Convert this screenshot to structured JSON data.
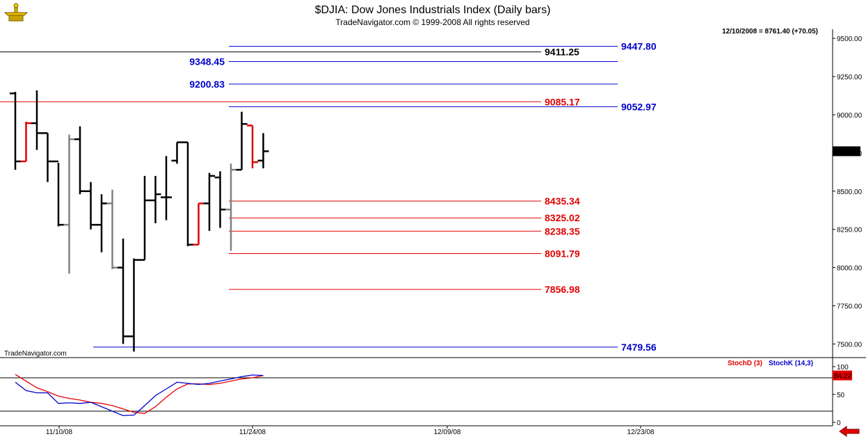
{
  "header": {
    "title": "$DJIA:  Dow Jones Industrials Index  (Daily bars)",
    "subtitle": "TradeNavigator.com © 1999-2008 All rights reserved",
    "last_info": "12/10/2008 = 8761.40 (+70.05)",
    "watermark": "TradeNavigator.com",
    "logo_icon": "gold-scale-icon",
    "nav_icon": "red-left-arrow-icon"
  },
  "chart_data": [
    {
      "type": "ohlc",
      "title": "$DJIA:  Dow Jones Industrials Index  (Daily bars)",
      "ylim": [
        7420,
        9560
      ],
      "yticks": [
        9500,
        9250,
        9000,
        8750,
        8500,
        8250,
        8000,
        7750,
        7500
      ],
      "ytick_labels": [
        "9500.00",
        "9250.00",
        "9000.00",
        "8750.00",
        "8500.00",
        "8250.00",
        "8000.00",
        "7750.00",
        "7500.00"
      ],
      "xtick_labels": [
        "11/10/08",
        "11/24/08",
        "12/09/08",
        "12/23/08"
      ],
      "last_price_label": "8761.40",
      "last_price": 8761.4,
      "colors": {
        "up": "#000000",
        "down": "#e00000",
        "neutral": "#808080"
      },
      "bars": [
        {
          "o": 9140,
          "h": 9150,
          "l": 8640,
          "c": 8695,
          "color": "up"
        },
        {
          "o": 8695,
          "h": 8955,
          "l": 8695,
          "c": 8945,
          "color": "down"
        },
        {
          "o": 8945,
          "h": 9160,
          "l": 8770,
          "c": 8880,
          "color": "up"
        },
        {
          "o": 8880,
          "h": 8880,
          "l": 8560,
          "c": 8695,
          "color": "up"
        },
        {
          "o": 8695,
          "h": 8685,
          "l": 8270,
          "c": 8280,
          "color": "up"
        },
        {
          "o": 8280,
          "h": 8870,
          "l": 7960,
          "c": 8840,
          "color": "neutral"
        },
        {
          "o": 8840,
          "h": 8925,
          "l": 8480,
          "c": 8500,
          "color": "up"
        },
        {
          "o": 8500,
          "h": 8560,
          "l": 8250,
          "c": 8280,
          "color": "up"
        },
        {
          "o": 8280,
          "h": 8480,
          "l": 8100,
          "c": 8420,
          "color": "up"
        },
        {
          "o": 8420,
          "h": 8510,
          "l": 7990,
          "c": 8000,
          "color": "neutral"
        },
        {
          "o": 8000,
          "h": 8190,
          "l": 7500,
          "c": 7550,
          "color": "up"
        },
        {
          "o": 7550,
          "h": 8060,
          "l": 7450,
          "c": 8050,
          "color": "up"
        },
        {
          "o": 8050,
          "h": 8600,
          "l": 8050,
          "c": 8440,
          "color": "up"
        },
        {
          "o": 8440,
          "h": 8600,
          "l": 8290,
          "c": 8480,
          "color": "up"
        },
        {
          "o": 8460,
          "h": 8730,
          "l": 8310,
          "c": 8460,
          "color": "up"
        },
        {
          "o": 8700,
          "h": 8820,
          "l": 8680,
          "c": 8820,
          "color": "up"
        },
        {
          "o": 8820,
          "h": 8820,
          "l": 8140,
          "c": 8150,
          "color": "up"
        },
        {
          "o": 8150,
          "h": 8420,
          "l": 8150,
          "c": 8420,
          "color": "down"
        },
        {
          "o": 8420,
          "h": 8620,
          "l": 8240,
          "c": 8600,
          "color": "up"
        },
        {
          "o": 8590,
          "h": 8630,
          "l": 8260,
          "c": 8380,
          "color": "up"
        },
        {
          "o": 8380,
          "h": 8680,
          "l": 8110,
          "c": 8640,
          "color": "neutral"
        },
        {
          "o": 8640,
          "h": 9020,
          "l": 8640,
          "c": 8940,
          "color": "up"
        },
        {
          "o": 8930,
          "h": 8930,
          "l": 8650,
          "c": 8690,
          "color": "down"
        },
        {
          "o": 8700,
          "h": 8880,
          "l": 8650,
          "c": 8761.4,
          "color": "up"
        }
      ],
      "levels": [
        {
          "value": 9447.8,
          "label": "9447.80",
          "color": "#0000cc",
          "side": "right"
        },
        {
          "value": 9411.25,
          "label": "9411.25",
          "color": "#000000",
          "side": "mid"
        },
        {
          "value": 9348.45,
          "label": "9348.45",
          "color": "#0000cc",
          "side": "left"
        },
        {
          "value": 9200.83,
          "label": "9200.83",
          "color": "#0000cc",
          "side": "left"
        },
        {
          "value": 9085.17,
          "label": "9085.17",
          "color": "#e00000",
          "side": "mid"
        },
        {
          "value": 9052.97,
          "label": "9052.97",
          "color": "#0000cc",
          "side": "right"
        },
        {
          "value": 8435.34,
          "label": "8435.34",
          "color": "#e00000",
          "side": "mid"
        },
        {
          "value": 8325.02,
          "label": "8325.02",
          "color": "#e00000",
          "side": "mid"
        },
        {
          "value": 8238.35,
          "label": "8238.35",
          "color": "#e00000",
          "side": "mid"
        },
        {
          "value": 8091.79,
          "label": "8091.79",
          "color": "#e00000",
          "side": "mid"
        },
        {
          "value": 7856.98,
          "label": "7856.98",
          "color": "#e00000",
          "side": "mid"
        },
        {
          "value": 7479.56,
          "label": "7479.56",
          "color": "#0000cc",
          "side": "right"
        }
      ]
    },
    {
      "type": "line",
      "ylim": [
        -5,
        110
      ],
      "yticks": [
        100,
        50,
        0
      ],
      "ytick_labels": [
        "100",
        "50",
        "0"
      ],
      "reference_lines": [
        80,
        20
      ],
      "last_value_label": "84.22",
      "legend": [
        "StochD (3)",
        "StochK (14,3)"
      ],
      "series": [
        {
          "name": "StochD (3)",
          "color": "#e00000",
          "values": [
            86,
            74,
            62,
            55,
            47,
            43,
            40,
            36,
            34,
            30,
            24,
            18,
            16,
            28,
            45,
            60,
            69,
            69,
            68,
            70,
            74,
            78,
            80,
            84
          ]
        },
        {
          "name": "StochK (14,3)",
          "color": "#0000cc",
          "values": [
            72,
            57,
            53,
            53,
            34,
            35,
            34,
            36,
            28,
            20,
            12,
            13,
            30,
            48,
            60,
            72,
            70,
            68,
            70,
            74,
            78,
            82,
            85,
            84.2
          ]
        }
      ]
    }
  ]
}
